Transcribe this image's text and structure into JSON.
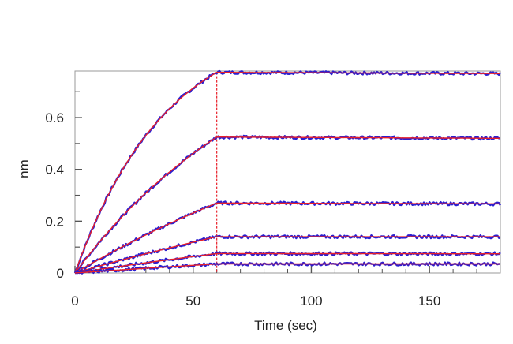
{
  "chart_data": {
    "type": "line",
    "title": "",
    "xlabel": "Time (sec)",
    "ylabel": "nm",
    "xlim": [
      0,
      180
    ],
    "ylim": [
      0,
      0.78
    ],
    "xticks": [
      0,
      50,
      100,
      150
    ],
    "xtick_labels": [
      "0",
      "50",
      "100",
      "150"
    ],
    "yticks": [
      0,
      0.2,
      0.4,
      0.6
    ],
    "ytick_labels": [
      "0",
      "0.2",
      "0.4",
      "0.6"
    ],
    "yminor_ticks": [
      0.1,
      0.3,
      0.5,
      0.7
    ],
    "grid": false,
    "legend": "none",
    "association_end_x": 60,
    "series": [
      {
        "plateau": 0.775,
        "end_value": 0.77,
        "k": 0.026
      },
      {
        "plateau": 0.525,
        "end_value": 0.52,
        "k": 0.012
      },
      {
        "plateau": 0.27,
        "end_value": 0.267,
        "k": 0.006
      },
      {
        "plateau": 0.14,
        "end_value": 0.14,
        "k": 0.004
      },
      {
        "plateau": 0.075,
        "end_value": 0.074,
        "k": 0.003
      },
      {
        "plateau": 0.035,
        "end_value": 0.035,
        "k": 0.002
      }
    ],
    "colors": {
      "measured": "#2b1fd0",
      "fit": "#e8202a",
      "axis": "#555555",
      "frame": "#9a9a9a"
    }
  }
}
